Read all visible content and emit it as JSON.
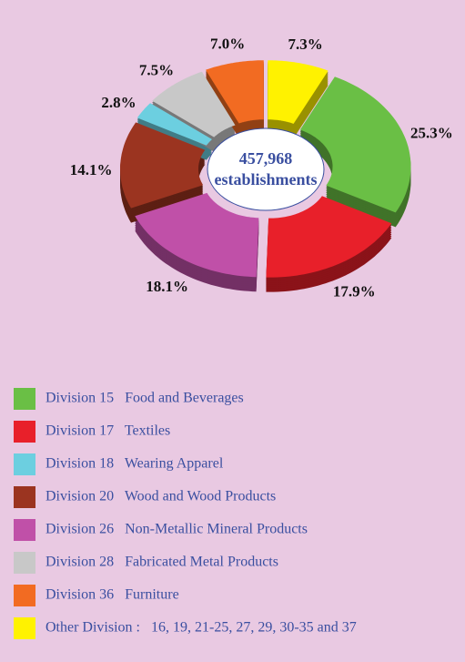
{
  "chart_data": {
    "type": "donut",
    "annotations": [
      "457,968",
      "establishments"
    ],
    "series": [
      {
        "name": "Division 15   Food and Beverages",
        "color": "#6abf45"
      },
      {
        "name": "Division 17   Textiles",
        "color": "#e8202a"
      },
      {
        "name": "Division 18   Wearing Apparel",
        "color": "#6ccfe0"
      },
      {
        "name": "Division 20   Wood and Wood Products",
        "color": "#9b3420"
      },
      {
        "name": "Division 26   Non-Metallic Mineral Products",
        "color": "#c050a8"
      },
      {
        "name": "Division 28   Fabricated Metal Products",
        "color": "#c8c8c8"
      },
      {
        "name": "Division 36   Furniture",
        "color": "#f26b22"
      },
      {
        "name": "Other Division :   16, 19, 21-25, 27, 29, 30-35 and 37",
        "color": "#fff200"
      }
    ],
    "values": [
      25.3,
      17.9,
      2.8,
      14.1,
      18.1,
      7.5,
      7.0,
      7.3
    ],
    "value_labels": [
      "25.3%",
      "17.9%",
      "2.8%",
      "14.1%",
      "18.1%",
      "7.5%",
      "7.0%",
      "7.3%"
    ]
  }
}
